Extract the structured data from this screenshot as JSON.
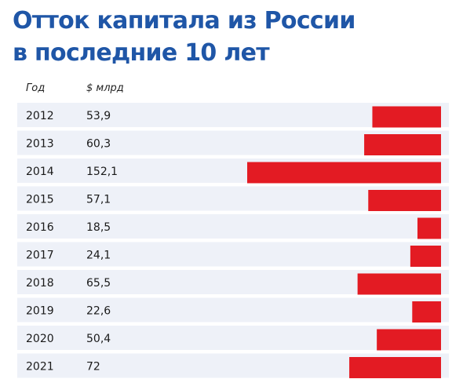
{
  "title_line1": "Отток капитала из России",
  "title_line2": "в последние 10 лет",
  "chart_data": {
    "type": "bar",
    "orientation": "horizontal",
    "column_headers": [
      "Год",
      "$ млрд"
    ],
    "categories": [
      "2012",
      "2013",
      "2014",
      "2015",
      "2016",
      "2017",
      "2018",
      "2019",
      "2020",
      "2021"
    ],
    "value_labels": [
      "53,9",
      "60,3",
      "152,1",
      "57,1",
      "18,5",
      "24,1",
      "65,5",
      "22,6",
      "50,4",
      "72"
    ],
    "values": [
      53.9,
      60.3,
      152.1,
      57.1,
      18.5,
      24.1,
      65.5,
      22.6,
      50.4,
      72
    ],
    "bar_color": "#e31b23",
    "row_stripe_color": "#eef1f8",
    "title_color": "#1f56a7"
  }
}
